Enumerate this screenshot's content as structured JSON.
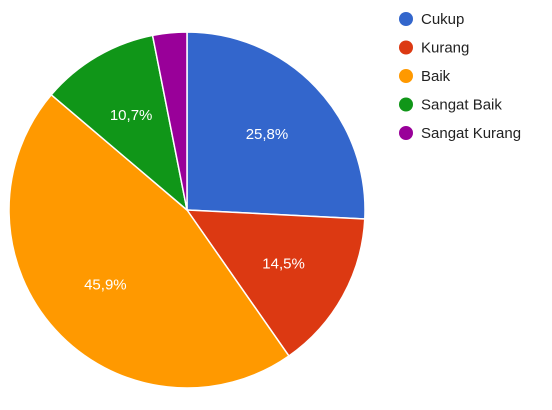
{
  "chart_data": {
    "type": "pie",
    "title": "",
    "categories": [
      "Cukup",
      "Kurang",
      "Baik",
      "Sangat Baik",
      "Sangat Kurang"
    ],
    "values": [
      25.8,
      14.5,
      45.9,
      10.7,
      3.1
    ],
    "data_labels": [
      "25,8%",
      "14,5%",
      "45,9%",
      "10,7%",
      ""
    ],
    "colors": [
      "#3366cc",
      "#dc3912",
      "#ff9900",
      "#109618",
      "#990099"
    ],
    "start_angle_deg": 0,
    "direction": "clockwise",
    "legend": {
      "position": "right",
      "entries": [
        "Cukup",
        "Kurang",
        "Baik",
        "Sangat Baik",
        "Sangat Kurang"
      ]
    }
  }
}
